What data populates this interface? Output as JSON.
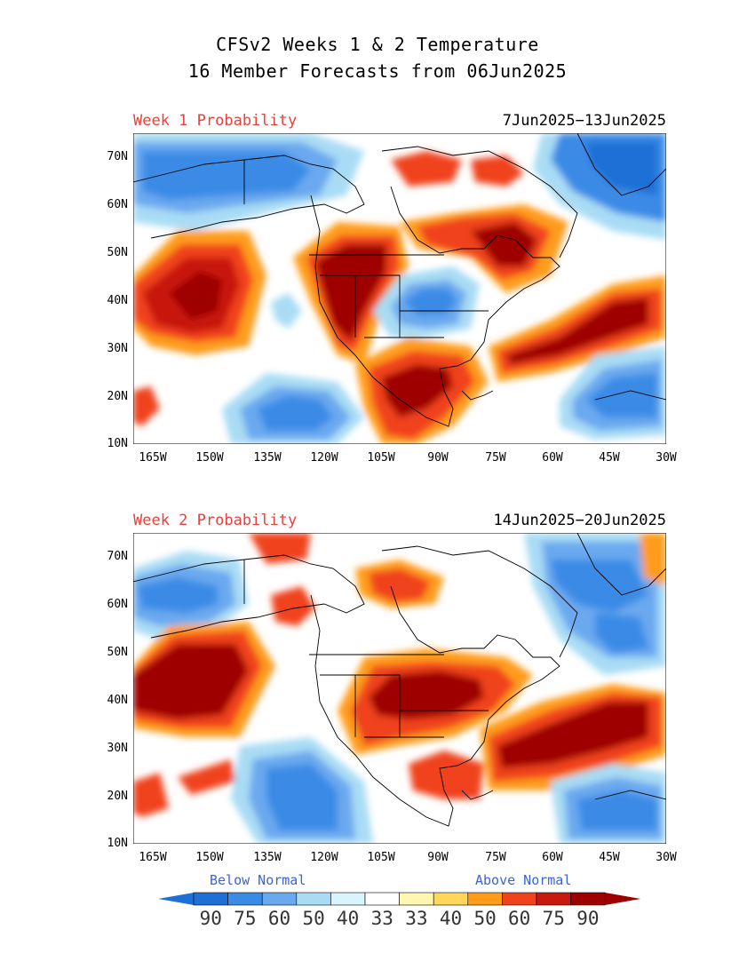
{
  "title": {
    "line1": "CFSv2 Weeks 1 & 2 Temperature",
    "line2": "16 Member Forecasts from 06Jun2025"
  },
  "panels": [
    {
      "label": "Week 1 Probability",
      "dates": "7Jun2025−13Jun2025"
    },
    {
      "label": "Week 2 Probability",
      "dates": "14Jun2025−20Jun2025"
    }
  ],
  "axes": {
    "lat_labels": [
      "70N",
      "60N",
      "50N",
      "40N",
      "30N",
      "20N",
      "10N"
    ],
    "lon_labels": [
      "165W",
      "150W",
      "135W",
      "120W",
      "105W",
      "90W",
      "75W",
      "60W",
      "45W",
      "30W"
    ],
    "lon_range": [
      -170,
      -30
    ],
    "lat_range": [
      10,
      75
    ]
  },
  "legend": {
    "below_label": "Below Normal",
    "above_label": "Above Normal",
    "values": [
      "90",
      "75",
      "60",
      "50",
      "40",
      "33",
      "33",
      "40",
      "50",
      "60",
      "75",
      "90"
    ],
    "colors": [
      "#1f6fd6",
      "#3a8be6",
      "#6aa9ef",
      "#a9dcf4",
      "#d9f4fb",
      "#ffffff",
      "#fff6b0",
      "#ffd55a",
      "#ff9c1a",
      "#f0421c",
      "#c8190f",
      "#9e0000"
    ]
  },
  "colors": {
    "blue_dark": "#1f6fd6",
    "blue_mid": "#3a8be6",
    "blue_light": "#6aa9ef",
    "cyan": "#a9dcf4",
    "cyan_pale": "#d9f4fb",
    "yellow_pale": "#fff6b0",
    "yellow": "#ffd55a",
    "orange": "#ff9c1a",
    "red_orange": "#f0421c",
    "red": "#c8190f",
    "dark_red": "#9e0000"
  }
}
